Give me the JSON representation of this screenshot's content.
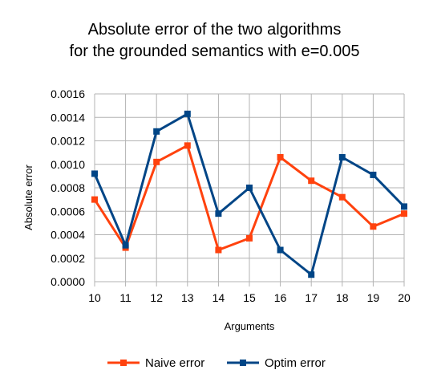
{
  "chart_data": {
    "type": "line",
    "title_line1": "Absolute error of the two algorithms",
    "title_line2": "for the grounded semantics with e=0.005",
    "xlabel": "Arguments",
    "ylabel": "Absolute error",
    "x": [
      10,
      11,
      12,
      13,
      14,
      15,
      16,
      17,
      18,
      19,
      20
    ],
    "ylim": [
      0,
      0.0016
    ],
    "yticks": [
      "0.0000",
      "0.0002",
      "0.0004",
      "0.0006",
      "0.0008",
      "0.0010",
      "0.0012",
      "0.0014",
      "0.0016"
    ],
    "grid": true,
    "legend_position": "bottom",
    "series": [
      {
        "name": "Naive error",
        "color": "#ff420e",
        "values": [
          0.0007,
          0.00029,
          0.00102,
          0.00116,
          0.00027,
          0.00037,
          0.00106,
          0.00086,
          0.00072,
          0.00047,
          0.00058
        ]
      },
      {
        "name": "Optim error",
        "color": "#004586",
        "values": [
          0.00092,
          0.00031,
          0.00128,
          0.00143,
          0.00058,
          0.0008,
          0.00027,
          6e-05,
          0.00106,
          0.00091,
          0.00064
        ]
      }
    ]
  }
}
